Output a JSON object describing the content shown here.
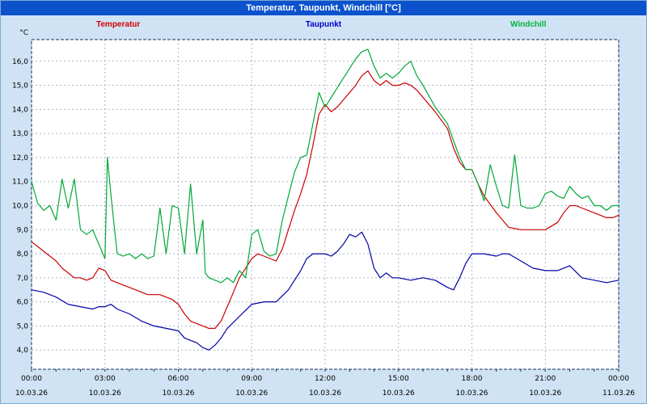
{
  "header": {
    "title": "Temperatur, Taupunkt, Windchill [°C]"
  },
  "legend": [
    {
      "label": "Temperatur",
      "color": "#d40000"
    },
    {
      "label": "Taupunkt",
      "color": "#0000cc"
    },
    {
      "label": "Windchill",
      "color": "#00b43c"
    }
  ],
  "chart_data": {
    "type": "line",
    "title": "Temperatur, Taupunkt, Windchill [°C]",
    "unit_label": "°C",
    "xlabel": "",
    "ylabel": "°C",
    "xlim": [
      0,
      24
    ],
    "ylim": [
      3.2,
      16.9
    ],
    "grid": true,
    "legend_position": "top",
    "plot_bg": "#ffffff",
    "grid_color": "#a7b6c9",
    "border_color": "#16305f",
    "yticks": [
      4,
      5,
      6,
      7,
      8,
      9,
      10,
      11,
      12,
      13,
      14,
      15,
      16
    ],
    "ytick_labels": [
      "4,0",
      "5,0",
      "6,0",
      "7,0",
      "8,0",
      "9,0",
      "10,0",
      "11,0",
      "12,0",
      "13,0",
      "14,0",
      "15,0",
      "16,0"
    ],
    "xticks": [
      0,
      3,
      6,
      9,
      12,
      15,
      18,
      21,
      24
    ],
    "xtick_labels": [
      "00:00",
      "03:00",
      "06:00",
      "09:00",
      "12:00",
      "15:00",
      "18:00",
      "21:00",
      "00:00"
    ],
    "xtick_dates": [
      "10.03.26",
      "10.03.26",
      "10.03.26",
      "10.03.26",
      "10.03.26",
      "10.03.26",
      "10.03.26",
      "10.03.26",
      "11.03.26"
    ],
    "series": [
      {
        "name": "Temperatur",
        "color": "#cc0000",
        "points": [
          [
            0,
            8.5
          ],
          [
            0.25,
            8.3
          ],
          [
            0.5,
            8.1
          ],
          [
            0.75,
            7.9
          ],
          [
            1,
            7.7
          ],
          [
            1.25,
            7.4
          ],
          [
            1.5,
            7.2
          ],
          [
            1.75,
            7.0
          ],
          [
            2,
            7.0
          ],
          [
            2.25,
            6.9
          ],
          [
            2.5,
            7.0
          ],
          [
            2.75,
            7.4
          ],
          [
            3,
            7.3
          ],
          [
            3.25,
            6.9
          ],
          [
            3.5,
            6.8
          ],
          [
            3.75,
            6.7
          ],
          [
            4,
            6.6
          ],
          [
            4.25,
            6.5
          ],
          [
            4.5,
            6.4
          ],
          [
            4.75,
            6.3
          ],
          [
            5,
            6.3
          ],
          [
            5.25,
            6.3
          ],
          [
            5.5,
            6.2
          ],
          [
            5.75,
            6.1
          ],
          [
            6,
            5.9
          ],
          [
            6.25,
            5.5
          ],
          [
            6.5,
            5.2
          ],
          [
            6.75,
            5.1
          ],
          [
            7,
            5.0
          ],
          [
            7.25,
            4.9
          ],
          [
            7.5,
            4.9
          ],
          [
            7.75,
            5.2
          ],
          [
            8,
            5.8
          ],
          [
            8.25,
            6.4
          ],
          [
            8.5,
            7.0
          ],
          [
            8.75,
            7.4
          ],
          [
            9,
            7.8
          ],
          [
            9.25,
            8.0
          ],
          [
            9.5,
            7.9
          ],
          [
            9.75,
            7.8
          ],
          [
            10,
            7.7
          ],
          [
            10.25,
            8.2
          ],
          [
            10.5,
            9.0
          ],
          [
            10.75,
            9.8
          ],
          [
            11,
            10.5
          ],
          [
            11.25,
            11.3
          ],
          [
            11.5,
            12.5
          ],
          [
            11.75,
            13.8
          ],
          [
            12,
            14.2
          ],
          [
            12.25,
            13.9
          ],
          [
            12.5,
            14.1
          ],
          [
            12.75,
            14.4
          ],
          [
            13,
            14.7
          ],
          [
            13.25,
            15.0
          ],
          [
            13.5,
            15.4
          ],
          [
            13.75,
            15.6
          ],
          [
            14,
            15.2
          ],
          [
            14.25,
            15.0
          ],
          [
            14.5,
            15.2
          ],
          [
            14.75,
            15.0
          ],
          [
            15,
            15.0
          ],
          [
            15.25,
            15.1
          ],
          [
            15.5,
            15.0
          ],
          [
            15.75,
            14.8
          ],
          [
            16,
            14.5
          ],
          [
            16.5,
            13.9
          ],
          [
            17,
            13.2
          ],
          [
            17.25,
            12.4
          ],
          [
            17.5,
            11.8
          ],
          [
            17.75,
            11.5
          ],
          [
            18,
            11.5
          ],
          [
            18.25,
            10.9
          ],
          [
            18.5,
            10.4
          ],
          [
            19,
            9.7
          ],
          [
            19.5,
            9.1
          ],
          [
            20,
            9.0
          ],
          [
            20.5,
            9.0
          ],
          [
            21,
            9.0
          ],
          [
            21.5,
            9.3
          ],
          [
            21.75,
            9.7
          ],
          [
            22,
            10.0
          ],
          [
            22.25,
            10.0
          ],
          [
            22.5,
            9.9
          ],
          [
            23,
            9.7
          ],
          [
            23.5,
            9.5
          ],
          [
            23.75,
            9.5
          ],
          [
            24,
            9.6
          ]
        ]
      },
      {
        "name": "Taupunkt",
        "color": "#0000a8",
        "points": [
          [
            0,
            6.5
          ],
          [
            0.5,
            6.4
          ],
          [
            1,
            6.2
          ],
          [
            1.5,
            5.9
          ],
          [
            2,
            5.8
          ],
          [
            2.5,
            5.7
          ],
          [
            2.75,
            5.8
          ],
          [
            3,
            5.8
          ],
          [
            3.25,
            5.9
          ],
          [
            3.5,
            5.7
          ],
          [
            4,
            5.5
          ],
          [
            4.5,
            5.2
          ],
          [
            5,
            5.0
          ],
          [
            5.5,
            4.9
          ],
          [
            6,
            4.8
          ],
          [
            6.25,
            4.5
          ],
          [
            6.5,
            4.4
          ],
          [
            6.75,
            4.3
          ],
          [
            7,
            4.1
          ],
          [
            7.25,
            4.0
          ],
          [
            7.5,
            4.2
          ],
          [
            7.75,
            4.5
          ],
          [
            8,
            4.9
          ],
          [
            8.5,
            5.4
          ],
          [
            9,
            5.9
          ],
          [
            9.5,
            6.0
          ],
          [
            10,
            6.0
          ],
          [
            10.5,
            6.5
          ],
          [
            11,
            7.3
          ],
          [
            11.25,
            7.8
          ],
          [
            11.5,
            8.0
          ],
          [
            12,
            8.0
          ],
          [
            12.25,
            7.9
          ],
          [
            12.5,
            8.1
          ],
          [
            12.75,
            8.4
          ],
          [
            13,
            8.8
          ],
          [
            13.25,
            8.7
          ],
          [
            13.5,
            8.9
          ],
          [
            13.75,
            8.4
          ],
          [
            14,
            7.4
          ],
          [
            14.25,
            7.0
          ],
          [
            14.5,
            7.2
          ],
          [
            14.75,
            7.0
          ],
          [
            15,
            7.0
          ],
          [
            15.5,
            6.9
          ],
          [
            16,
            7.0
          ],
          [
            16.5,
            6.9
          ],
          [
            17,
            6.6
          ],
          [
            17.25,
            6.5
          ],
          [
            17.5,
            7.0
          ],
          [
            17.75,
            7.6
          ],
          [
            18,
            8.0
          ],
          [
            18.5,
            8.0
          ],
          [
            19,
            7.9
          ],
          [
            19.25,
            8.0
          ],
          [
            19.5,
            8.0
          ],
          [
            20,
            7.7
          ],
          [
            20.5,
            7.4
          ],
          [
            21,
            7.3
          ],
          [
            21.5,
            7.3
          ],
          [
            22,
            7.5
          ],
          [
            22.5,
            7.0
          ],
          [
            23,
            6.9
          ],
          [
            23.5,
            6.8
          ],
          [
            24,
            6.9
          ]
        ]
      },
      {
        "name": "Windchill",
        "color": "#00a838",
        "points": [
          [
            0,
            11.0
          ],
          [
            0.25,
            10.1
          ],
          [
            0.5,
            9.8
          ],
          [
            0.75,
            10.0
          ],
          [
            1,
            9.4
          ],
          [
            1.25,
            11.1
          ],
          [
            1.5,
            9.9
          ],
          [
            1.75,
            11.1
          ],
          [
            2,
            9.0
          ],
          [
            2.25,
            8.8
          ],
          [
            2.5,
            9.0
          ],
          [
            2.75,
            8.4
          ],
          [
            3,
            7.8
          ],
          [
            3.1,
            12.0
          ],
          [
            3.25,
            10.4
          ],
          [
            3.5,
            8.0
          ],
          [
            3.75,
            7.9
          ],
          [
            4,
            8.0
          ],
          [
            4.25,
            7.8
          ],
          [
            4.5,
            8.0
          ],
          [
            4.75,
            7.8
          ],
          [
            5,
            7.9
          ],
          [
            5.25,
            9.9
          ],
          [
            5.5,
            8.0
          ],
          [
            5.75,
            10.0
          ],
          [
            6,
            9.9
          ],
          [
            6.25,
            8.0
          ],
          [
            6.5,
            10.9
          ],
          [
            6.75,
            8.0
          ],
          [
            7,
            9.4
          ],
          [
            7.1,
            7.2
          ],
          [
            7.25,
            7.0
          ],
          [
            7.5,
            6.9
          ],
          [
            7.75,
            6.8
          ],
          [
            8,
            7.0
          ],
          [
            8.25,
            6.8
          ],
          [
            8.5,
            7.3
          ],
          [
            8.75,
            7.0
          ],
          [
            9,
            8.8
          ],
          [
            9.25,
            9.0
          ],
          [
            9.5,
            8.1
          ],
          [
            9.75,
            7.9
          ],
          [
            10,
            8.0
          ],
          [
            10.25,
            9.4
          ],
          [
            10.5,
            10.4
          ],
          [
            10.75,
            11.4
          ],
          [
            11,
            12.0
          ],
          [
            11.25,
            12.1
          ],
          [
            11.5,
            13.4
          ],
          [
            11.75,
            14.7
          ],
          [
            12,
            14.1
          ],
          [
            12.25,
            14.5
          ],
          [
            12.5,
            14.9
          ],
          [
            12.75,
            15.3
          ],
          [
            13,
            15.7
          ],
          [
            13.25,
            16.1
          ],
          [
            13.5,
            16.4
          ],
          [
            13.75,
            16.5
          ],
          [
            14,
            15.8
          ],
          [
            14.25,
            15.3
          ],
          [
            14.5,
            15.5
          ],
          [
            14.75,
            15.3
          ],
          [
            15,
            15.5
          ],
          [
            15.25,
            15.8
          ],
          [
            15.5,
            16.0
          ],
          [
            15.75,
            15.4
          ],
          [
            16,
            15.0
          ],
          [
            16.5,
            14.1
          ],
          [
            17,
            13.4
          ],
          [
            17.25,
            12.7
          ],
          [
            17.5,
            12.0
          ],
          [
            17.75,
            11.5
          ],
          [
            18,
            11.5
          ],
          [
            18.25,
            10.9
          ],
          [
            18.5,
            10.2
          ],
          [
            18.75,
            11.7
          ],
          [
            19,
            10.8
          ],
          [
            19.25,
            10.0
          ],
          [
            19.5,
            9.9
          ],
          [
            19.75,
            12.1
          ],
          [
            20,
            10.0
          ],
          [
            20.25,
            9.9
          ],
          [
            20.5,
            9.9
          ],
          [
            20.75,
            10.0
          ],
          [
            21,
            10.5
          ],
          [
            21.25,
            10.6
          ],
          [
            21.5,
            10.4
          ],
          [
            21.75,
            10.3
          ],
          [
            22,
            10.8
          ],
          [
            22.25,
            10.5
          ],
          [
            22.5,
            10.3
          ],
          [
            22.75,
            10.4
          ],
          [
            23,
            10.0
          ],
          [
            23.25,
            10.0
          ],
          [
            23.5,
            9.8
          ],
          [
            23.75,
            10.0
          ],
          [
            24,
            10.0
          ]
        ]
      }
    ]
  }
}
